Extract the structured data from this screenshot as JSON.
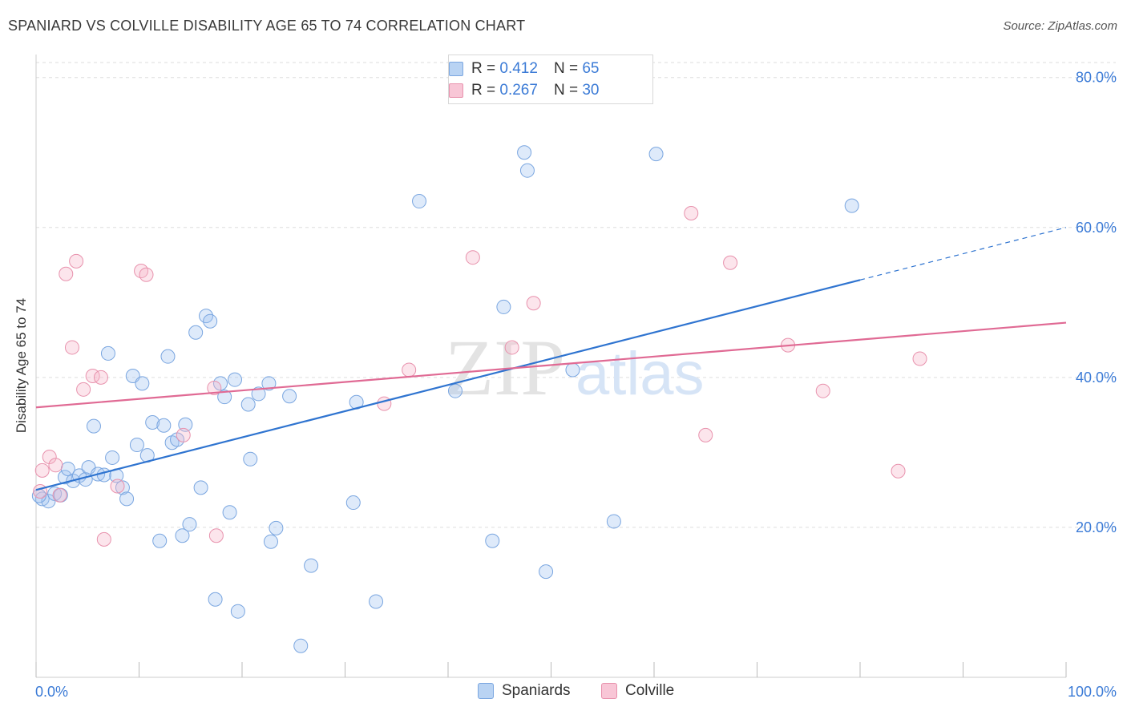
{
  "header": {
    "title": "SPANIARD VS COLVILLE DISABILITY AGE 65 TO 74 CORRELATION CHART",
    "source": "Source: ZipAtlas.com"
  },
  "legend": {
    "r_label": "R =",
    "n_label": "N =",
    "rows": [
      {
        "name": "Spaniards",
        "r": "0.412",
        "n": "65",
        "fill": "#b9d3f3",
        "stroke": "#7aa6e0"
      },
      {
        "name": "Colville",
        "r": "0.267",
        "n": "30",
        "fill": "#f8c6d6",
        "stroke": "#e892ad"
      }
    ]
  },
  "watermark": {
    "zip": "ZIP",
    "atlas": "atlas"
  },
  "colors": {
    "spaniards_point_fill": "rgba(160,196,240,0.35)",
    "spaniards_point_stroke": "#7aa6e0",
    "spaniards_line": "#2f74d0",
    "colville_point_fill": "rgba(246,180,200,0.35)",
    "colville_point_stroke": "#e892ad",
    "colville_line": "#e06a94",
    "tick_label": "#3a7ad6",
    "grid": "#dddddd"
  },
  "chart_data": {
    "type": "scatter",
    "ylabel": "Disability Age 65 to 74",
    "xlabel": "",
    "xlim": [
      0,
      100
    ],
    "ylim": [
      0,
      82
    ],
    "x_tick_labels": [
      {
        "value": 0,
        "label": "0.0%"
      },
      {
        "value": 100,
        "label": "100.0%"
      }
    ],
    "y_tick_labels": [
      {
        "value": 20,
        "label": "20.0%"
      },
      {
        "value": 40,
        "label": "40.0%"
      },
      {
        "value": 60,
        "label": "60.0%"
      },
      {
        "value": 80,
        "label": "80.0%"
      }
    ],
    "grid": true,
    "legend_position": "top-center",
    "series": [
      {
        "name": "Spaniards",
        "trend": {
          "x0": 0,
          "y0": 25.0,
          "x1": 80,
          "y1": 53.0,
          "dash_to_x": 100,
          "dash_to_y": 60.0
        },
        "points": [
          [
            0.6,
            23.8
          ],
          [
            1.2,
            23.5
          ],
          [
            1.8,
            24.5
          ],
          [
            2.4,
            24.3
          ],
          [
            2.8,
            26.7
          ],
          [
            3.1,
            27.8
          ],
          [
            3.6,
            26.2
          ],
          [
            4.2,
            26.9
          ],
          [
            4.8,
            26.4
          ],
          [
            5.1,
            28.0
          ],
          [
            5.6,
            33.5
          ],
          [
            6.0,
            27.1
          ],
          [
            6.6,
            27.0
          ],
          [
            7.0,
            43.2
          ],
          [
            7.4,
            29.3
          ],
          [
            7.8,
            26.9
          ],
          [
            8.4,
            25.3
          ],
          [
            8.8,
            23.8
          ],
          [
            9.4,
            40.2
          ],
          [
            9.8,
            31.0
          ],
          [
            10.3,
            39.2
          ],
          [
            10.8,
            29.6
          ],
          [
            11.3,
            34.0
          ],
          [
            12.0,
            18.2
          ],
          [
            12.4,
            33.6
          ],
          [
            12.8,
            42.8
          ],
          [
            13.2,
            31.3
          ],
          [
            13.7,
            31.7
          ],
          [
            14.2,
            18.9
          ],
          [
            14.5,
            33.7
          ],
          [
            14.9,
            20.4
          ],
          [
            15.5,
            46.0
          ],
          [
            16.0,
            25.3
          ],
          [
            16.5,
            48.2
          ],
          [
            16.9,
            47.5
          ],
          [
            17.4,
            10.4
          ],
          [
            17.9,
            39.2
          ],
          [
            18.3,
            37.4
          ],
          [
            18.8,
            22.0
          ],
          [
            19.3,
            39.7
          ],
          [
            19.6,
            8.8
          ],
          [
            20.6,
            36.4
          ],
          [
            20.8,
            29.1
          ],
          [
            21.6,
            37.8
          ],
          [
            22.6,
            39.2
          ],
          [
            22.8,
            18.1
          ],
          [
            23.3,
            19.9
          ],
          [
            24.6,
            37.5
          ],
          [
            25.7,
            4.2
          ],
          [
            26.7,
            14.9
          ],
          [
            30.8,
            23.3
          ],
          [
            31.1,
            36.7
          ],
          [
            33.0,
            10.1
          ],
          [
            37.2,
            63.5
          ],
          [
            40.7,
            38.2
          ],
          [
            44.3,
            18.2
          ],
          [
            45.4,
            49.4
          ],
          [
            47.4,
            70.0
          ],
          [
            47.7,
            67.6
          ],
          [
            49.5,
            14.1
          ],
          [
            52.1,
            41.0
          ],
          [
            56.1,
            20.8
          ],
          [
            60.2,
            69.8
          ],
          [
            79.2,
            62.9
          ],
          [
            0.3,
            24.2
          ]
        ]
      },
      {
        "name": "Colville",
        "trend": {
          "x0": 0,
          "y0": 36.0,
          "x1": 100,
          "y1": 47.3
        },
        "points": [
          [
            0.6,
            27.6
          ],
          [
            1.3,
            29.4
          ],
          [
            1.9,
            28.3
          ],
          [
            2.3,
            24.3
          ],
          [
            2.9,
            53.8
          ],
          [
            3.5,
            44.0
          ],
          [
            3.9,
            55.5
          ],
          [
            4.6,
            38.4
          ],
          [
            5.5,
            40.2
          ],
          [
            6.3,
            40.0
          ],
          [
            6.6,
            18.4
          ],
          [
            7.9,
            25.5
          ],
          [
            10.2,
            54.2
          ],
          [
            10.7,
            53.7
          ],
          [
            14.3,
            32.3
          ],
          [
            17.3,
            38.6
          ],
          [
            17.5,
            18.9
          ],
          [
            36.2,
            41.0
          ],
          [
            33.8,
            36.5
          ],
          [
            42.4,
            56.0
          ],
          [
            46.2,
            44.0
          ],
          [
            48.3,
            49.9
          ],
          [
            63.6,
            61.9
          ],
          [
            65.0,
            32.3
          ],
          [
            67.4,
            55.3
          ],
          [
            73.0,
            44.3
          ],
          [
            76.4,
            38.2
          ],
          [
            83.7,
            27.5
          ],
          [
            85.8,
            42.5
          ],
          [
            0.4,
            24.8
          ]
        ]
      }
    ]
  }
}
